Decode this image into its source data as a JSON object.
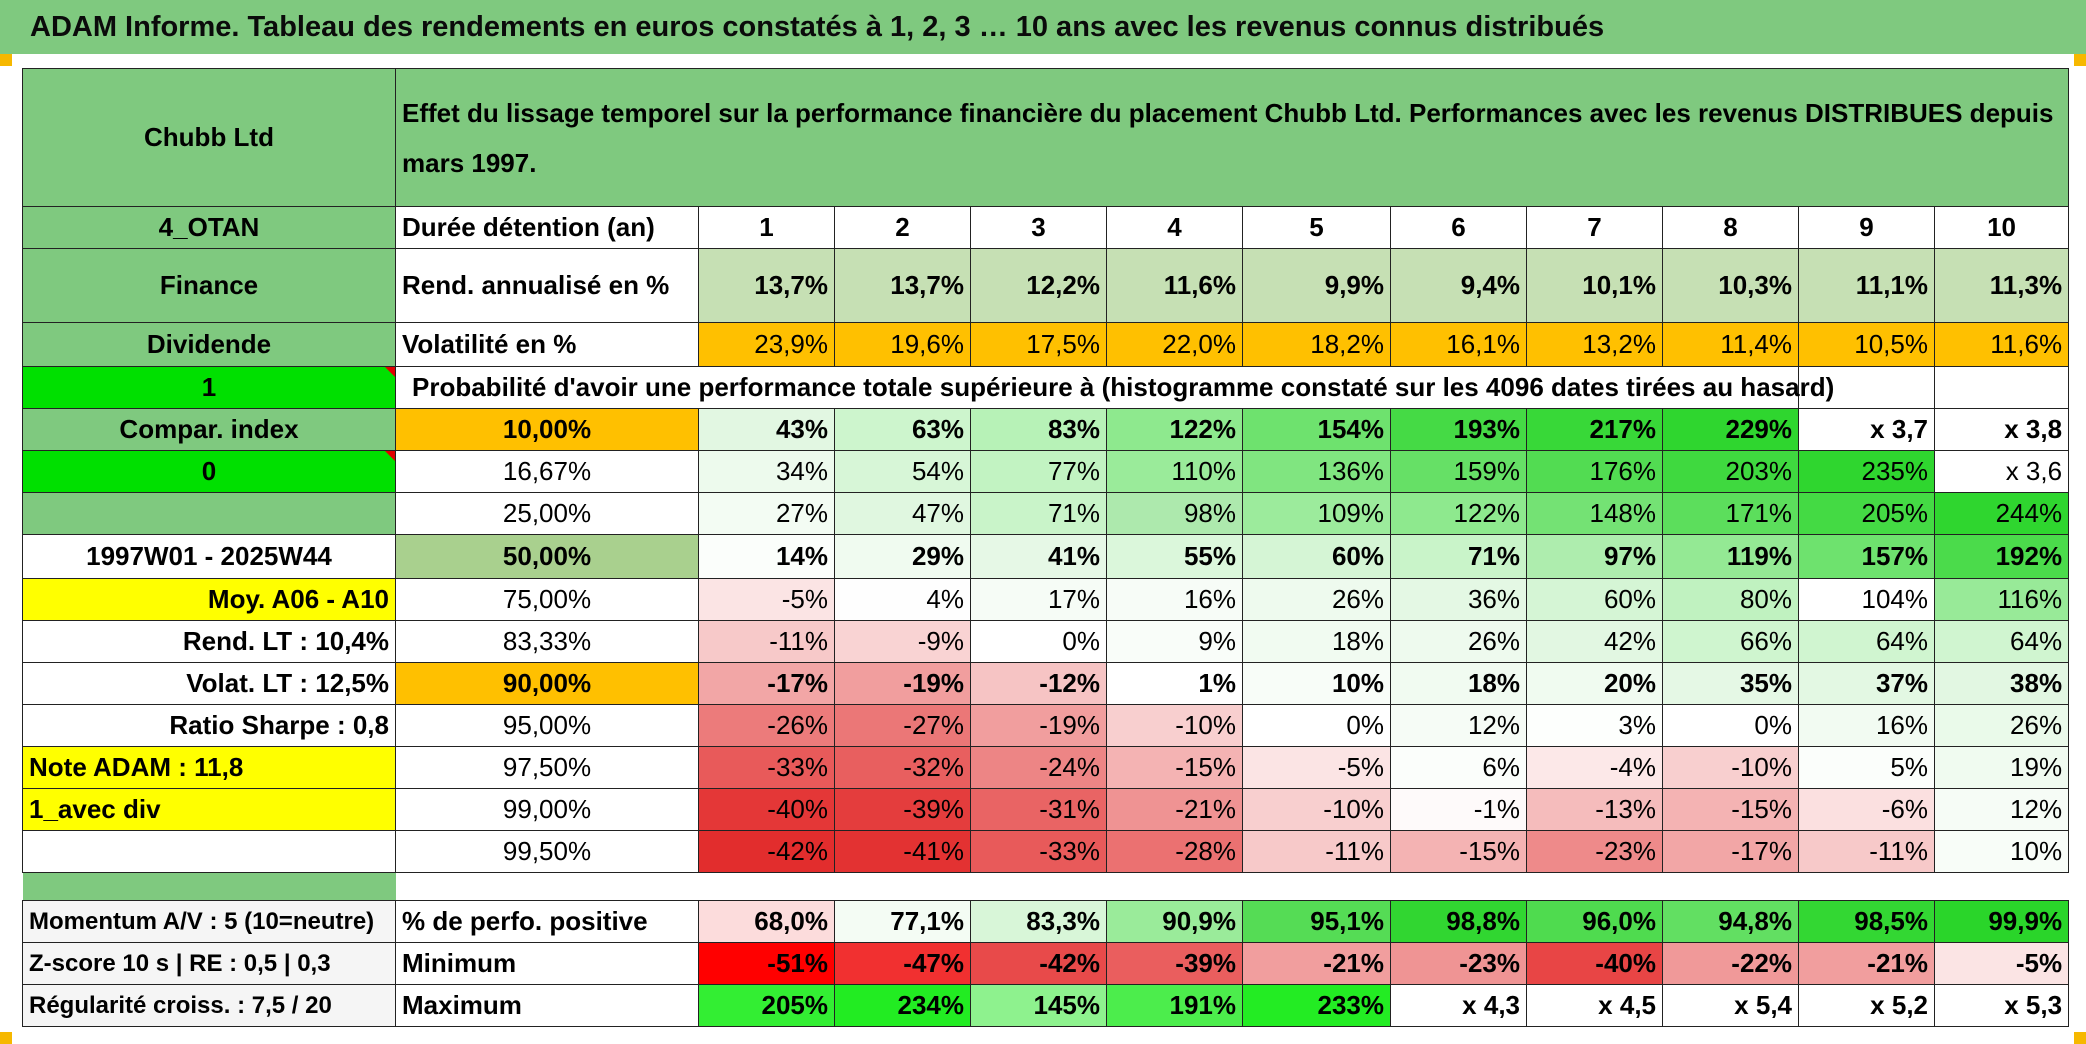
{
  "title": "ADAM Informe. Tableau des rendements en euros constatés à 1, 2, 3 … 10 ans avec les revenus connus distribués",
  "header": {
    "company": "Chubb Ltd",
    "description": "Effet du lissage temporel sur la performance financière du placement Chubb Ltd. Performances avec les revenus DISTRIBUES depuis mars 1997."
  },
  "info": {
    "category": "4_OTAN",
    "sector": "Finance",
    "type": "Dividende",
    "flag1": "1",
    "compar": "Compar. index",
    "flag0": "0",
    "period": "1997W01 - 2025W44",
    "moy": "Moy. A06 - A10",
    "rend_lt": "Rend. LT :   10,4%",
    "volat_lt": "Volat. LT :   12,5%",
    "sharpe": "Ratio Sharpe :   0,8",
    "note": "Note ADAM : 11,8",
    "mode": "1_avec div",
    "momentum": "Momentum A/V : 5 (10=neutre)",
    "zscore": "Z-score 10 s | RE : 0,5 | 0,3",
    "regularite": "Régularité croiss. : 7,5 / 20"
  },
  "labels": {
    "duree": "Durée détention (an)",
    "rend": "Rend. annualisé en %",
    "vol": "Volatilité en %",
    "proba": "Probabilité d'avoir une performance totale supérieure à (histogramme constaté sur les 4096 dates tirées au hasard)",
    "positive": "% de perfo. positive",
    "minimum": "Minimum",
    "maximum": "Maximum"
  },
  "years": [
    "1",
    "2",
    "3",
    "4",
    "5",
    "6",
    "7",
    "8",
    "9",
    "10"
  ],
  "rend": [
    "13,7%",
    "13,7%",
    "12,2%",
    "11,6%",
    "9,9%",
    "9,4%",
    "10,1%",
    "10,3%",
    "11,1%",
    "11,3%"
  ],
  "vol": [
    "23,9%",
    "19,6%",
    "17,5%",
    "22,0%",
    "18,2%",
    "16,1%",
    "13,2%",
    "11,4%",
    "10,5%",
    "11,6%"
  ],
  "vol_colors": [
    "#ffc000",
    "#ffc000",
    "#ffc000",
    "#ffc000",
    "#ffc000",
    "#ffc000",
    "#ffc000",
    "#ffc000",
    "#ffc000",
    "#ffc000"
  ],
  "prob_rows": [
    {
      "pct": "10,00%",
      "pct_bg": "#ffc000",
      "bold": true,
      "vals": [
        "43%",
        "63%",
        "83%",
        "122%",
        "154%",
        "193%",
        "217%",
        "229%",
        "x 3,7",
        "x 3,8"
      ],
      "colors": [
        "#e2f7e2",
        "#cdf5cd",
        "#b7f2b7",
        "#8ee98e",
        "#6ee26e",
        "#45da45",
        "#38d838",
        "#2fd62f",
        "#ffffff",
        "#ffffff"
      ]
    },
    {
      "pct": "16,67%",
      "pct_bg": "#ffffff",
      "bold": false,
      "vals": [
        "34%",
        "54%",
        "77%",
        "110%",
        "136%",
        "159%",
        "176%",
        "203%",
        "235%",
        "x 3,6"
      ],
      "colors": [
        "#edfaed",
        "#d7f6d7",
        "#c2f3c2",
        "#9aeb9a",
        "#80e580",
        "#66e066",
        "#52dc52",
        "#3fd93f",
        "#2fd62f",
        "#ffffff"
      ]
    },
    {
      "pct": "25,00%",
      "pct_bg": "#ffffff",
      "bold": false,
      "vals": [
        "27%",
        "47%",
        "71%",
        "98%",
        "109%",
        "122%",
        "148%",
        "171%",
        "205%",
        "244%"
      ],
      "colors": [
        "#f3fcf3",
        "#e0f7e0",
        "#c9f4c9",
        "#ade9ad",
        "#9ceb9c",
        "#8ee98e",
        "#74e274",
        "#5cde5c",
        "#44da44",
        "#2fd62f"
      ]
    },
    {
      "pct": "50,00%",
      "pct_bg": "#a9d08e",
      "bold": true,
      "big": true,
      "vals": [
        "14%",
        "29%",
        "41%",
        "55%",
        "60%",
        "71%",
        "97%",
        "119%",
        "157%",
        "192%"
      ],
      "colors": [
        "#fbfefb",
        "#f0fbf0",
        "#e6f8e6",
        "#dbf7db",
        "#d5f5d5",
        "#c9f4c9",
        "#aeedae",
        "#94e994",
        "#6ee26e",
        "#4bdb4b"
      ]
    },
    {
      "pct": "75,00%",
      "pct_bg": "#ffffff",
      "bold": false,
      "vals": [
        "-5%",
        "4%",
        "17%",
        "16%",
        "26%",
        "36%",
        "60%",
        "80%",
        "104%",
        "116%"
      ],
      "colors": [
        "#fbe4e4",
        "#fefefe",
        "#f6fcf6",
        "#f7fcf7",
        "#eefaee",
        "#e4f8e4",
        "#d5f5d5",
        "#c0f2c0",
        "#a6ecа6",
        "#98ea98"
      ]
    },
    {
      "pct": "83,33%",
      "pct_bg": "#ffffff",
      "bold": false,
      "vals": [
        "-11%",
        "-9%",
        "0%",
        "9%",
        "18%",
        "26%",
        "42%",
        "66%",
        "64%",
        "64%"
      ],
      "colors": [
        "#f7c9c9",
        "#f9d3d3",
        "#ffffff",
        "#f9fdf9",
        "#f1fbf1",
        "#eefaee",
        "#e2f7e2",
        "#cff5cf",
        "#d0f5d0",
        "#d0f5d0"
      ]
    },
    {
      "pct": "90,00%",
      "pct_bg": "#ffc000",
      "bold": true,
      "vals": [
        "-17%",
        "-19%",
        "-12%",
        "1%",
        "10%",
        "18%",
        "20%",
        "35%",
        "37%",
        "38%"
      ],
      "colors": [
        "#f2a6a6",
        "#f19e9e",
        "#f6c4c4",
        "#ffffff",
        "#f8fdf8",
        "#f1fbf1",
        "#f0fbf0",
        "#e5f8e5",
        "#e3f8e3",
        "#e2f7e2"
      ]
    },
    {
      "pct": "95,00%",
      "pct_bg": "#ffffff",
      "bold": false,
      "vals": [
        "-26%",
        "-27%",
        "-19%",
        "-10%",
        "0%",
        "12%",
        "3%",
        "0%",
        "16%",
        "26%"
      ],
      "colors": [
        "#ec7b7b",
        "#eb7777",
        "#f19e9e",
        "#f8cfcf",
        "#ffffff",
        "#f6fcf6",
        "#fdfffd",
        "#ffffff",
        "#f2fbf2",
        "#eafaea"
      ]
    },
    {
      "pct": "97,50%",
      "pct_bg": "#ffffff",
      "bold": false,
      "vals": [
        "-33%",
        "-32%",
        "-24%",
        "-15%",
        "-5%",
        "6%",
        "-4%",
        "-10%",
        "5%",
        "19%"
      ],
      "colors": [
        "#e85a5a",
        "#e85f5f",
        "#ed8585",
        "#f4b3b3",
        "#fbe4e4",
        "#fbfefb",
        "#fce8e8",
        "#f8cfcf",
        "#fbfefb",
        "#f0fbf0"
      ]
    },
    {
      "pct": "99,00%",
      "pct_bg": "#ffffff",
      "bold": false,
      "vals": [
        "-40%",
        "-39%",
        "-31%",
        "-21%",
        "-10%",
        "-1%",
        "-13%",
        "-15%",
        "-6%",
        "12%"
      ],
      "colors": [
        "#e43737",
        "#e43d3d",
        "#e96464",
        "#ef9393",
        "#f8cfcf",
        "#fefafa",
        "#f5bcbc",
        "#f4b3b3",
        "#fbe0e0",
        "#f6fcf6"
      ]
    },
    {
      "pct": "99,50%",
      "pct_bg": "#ffffff",
      "bold": false,
      "vals": [
        "-42%",
        "-41%",
        "-33%",
        "-28%",
        "-11%",
        "-15%",
        "-23%",
        "-17%",
        "-11%",
        "10%"
      ],
      "colors": [
        "#e22d2d",
        "#e33232",
        "#e85a5a",
        "#eb7171",
        "#f7c9c9",
        "#f4b3b3",
        "#ee8a8a",
        "#f2a6a6",
        "#f7c9c9",
        "#f8fdf8"
      ]
    }
  ],
  "positive": [
    "68,0%",
    "77,1%",
    "83,3%",
    "90,9%",
    "95,1%",
    "98,8%",
    "96,0%",
    "94,8%",
    "98,5%",
    "99,9%"
  ],
  "positive_colors": [
    "#fcdcdc",
    "#f4fcf4",
    "#d8f6d8",
    "#9aeb9a",
    "#55dc55",
    "#31d631",
    "#4fdb4f",
    "#62df62",
    "#33d733",
    "#2ad52a"
  ],
  "minimum": [
    "-51%",
    "-47%",
    "-42%",
    "-39%",
    "-21%",
    "-23%",
    "-40%",
    "-22%",
    "-21%",
    "-5%"
  ],
  "minimum_colors": [
    "#ff0000",
    "#f13030",
    "#e84a4a",
    "#ea5e5e",
    "#f19e9e",
    "#ef9494",
    "#e84545",
    "#f09999",
    "#f19e9e",
    "#fbe4e4"
  ],
  "maximum": [
    "205%",
    "234%",
    "145%",
    "191%",
    "233%",
    "x 4,3",
    "x 4,5",
    "x 5,4",
    "x 5,2",
    "x 5,3"
  ],
  "maximum_colors": [
    "#33ee33",
    "#22ec22",
    "#8ef28e",
    "#4ced4c",
    "#23ec23",
    "#ffffff",
    "#ffffff",
    "#ffffff",
    "#ffffff",
    "#ffffff"
  ]
}
